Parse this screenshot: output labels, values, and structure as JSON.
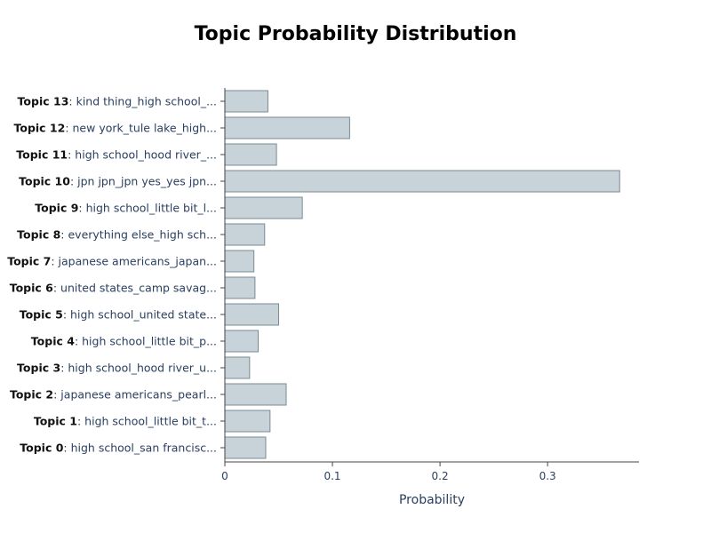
{
  "chart_data": {
    "type": "bar",
    "orientation": "horizontal",
    "title": "Topic Probability Distribution",
    "xlabel": "Probability",
    "ylabel": "",
    "xlim": [
      0,
      0.385
    ],
    "xticks": [
      0,
      0.1,
      0.2,
      0.3
    ],
    "xtick_labels": [
      "0",
      "0.1",
      "0.2",
      "0.3"
    ],
    "grid": false,
    "categories": [
      {
        "name": "Topic 13",
        "desc": ": kind thing_high school_..."
      },
      {
        "name": "Topic 12",
        "desc": ": new york_tule lake_high..."
      },
      {
        "name": "Topic 11",
        "desc": ": high school_hood river_..."
      },
      {
        "name": "Topic 10",
        "desc": ": jpn jpn_jpn yes_yes jpn..."
      },
      {
        "name": "Topic 9",
        "desc": ": high school_little bit_l..."
      },
      {
        "name": "Topic 8",
        "desc": ": everything else_high sch..."
      },
      {
        "name": "Topic 7",
        "desc": ": japanese americans_japan..."
      },
      {
        "name": "Topic 6",
        "desc": ": united states_camp savag..."
      },
      {
        "name": "Topic 5",
        "desc": ": high school_united state..."
      },
      {
        "name": "Topic 4",
        "desc": ": high school_little bit_p..."
      },
      {
        "name": "Topic 3",
        "desc": ": high school_hood river_u..."
      },
      {
        "name": "Topic 2",
        "desc": ": japanese americans_pearl..."
      },
      {
        "name": "Topic 1",
        "desc": ": high school_little bit_t..."
      },
      {
        "name": "Topic 0",
        "desc": ": high school_san francisc..."
      }
    ],
    "values": [
      0.04,
      0.116,
      0.048,
      0.367,
      0.072,
      0.037,
      0.027,
      0.028,
      0.05,
      0.031,
      0.023,
      0.057,
      0.042,
      0.038
    ],
    "colors": {
      "bar_fill": "#c8d3d9",
      "bar_stroke": "#7a8b92",
      "axis": "#444444"
    }
  }
}
